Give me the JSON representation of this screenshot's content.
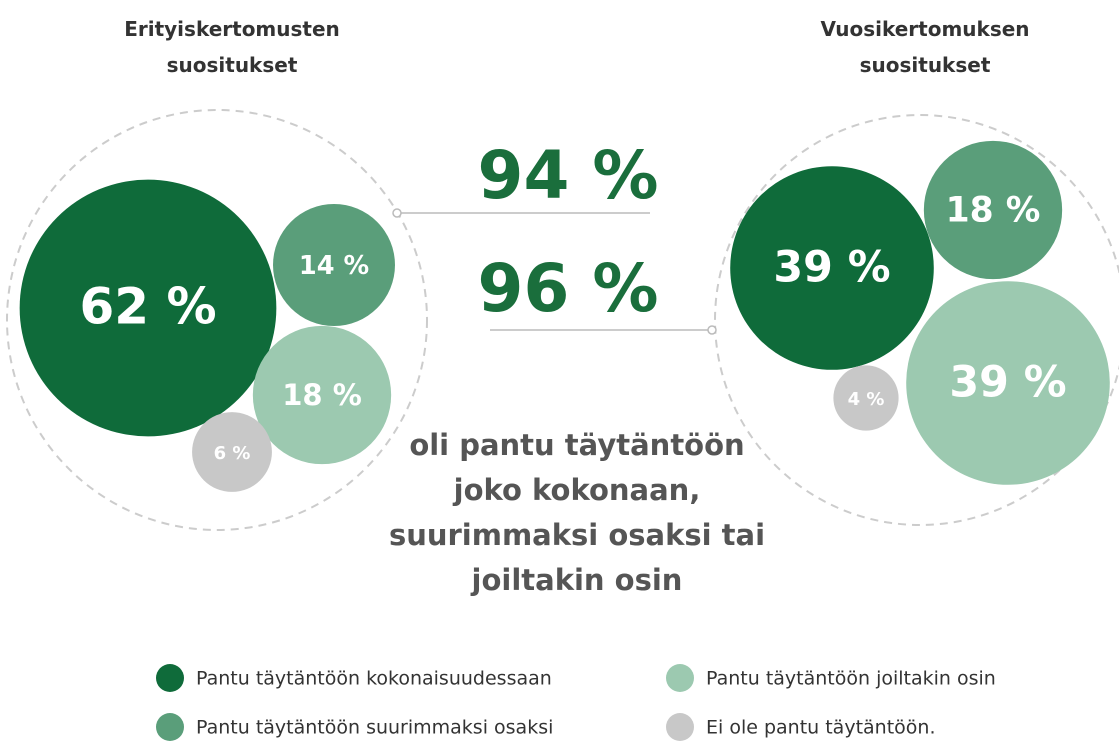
{
  "chart_data": [
    {
      "type": "bubble",
      "title": "Erityiskertomusten suositukset",
      "categories": [
        "Pantu täytäntöön kokonaisuudessaan",
        "Pantu täytäntöön suurimmaksi osaksi",
        "Pantu täytäntöön joiltakin osin",
        "Ei ole pantu täytäntöön."
      ],
      "values": [
        62,
        14,
        18,
        6
      ],
      "value_labels": [
        "62 %",
        "14 %",
        "18 %",
        "6 %"
      ],
      "colors": [
        "#0f6b3a",
        "#5a9e7a",
        "#9cc9b0",
        "#c8c8c8"
      ],
      "summary": "94 %"
    },
    {
      "type": "bubble",
      "title": "Vuosikertomuksen suositukset",
      "categories": [
        "Pantu täytäntöön kokonaisuudessaan",
        "Pantu täytäntöön suurimmaksi osaksi",
        "Pantu täytäntöön joiltakin osin",
        "Ei ole pantu täytäntöön."
      ],
      "values": [
        39,
        18,
        39,
        4
      ],
      "value_labels": [
        "39 %",
        "18 %",
        "39 %",
        "4 %"
      ],
      "colors": [
        "#0f6b3a",
        "#5a9e7a",
        "#9cc9b0",
        "#c8c8c8"
      ],
      "summary": "96 %"
    }
  ],
  "annotation": "oli pantu täytäntöön joko kokonaan, suurimmaksi osaksi tai joiltakin osin"
}
